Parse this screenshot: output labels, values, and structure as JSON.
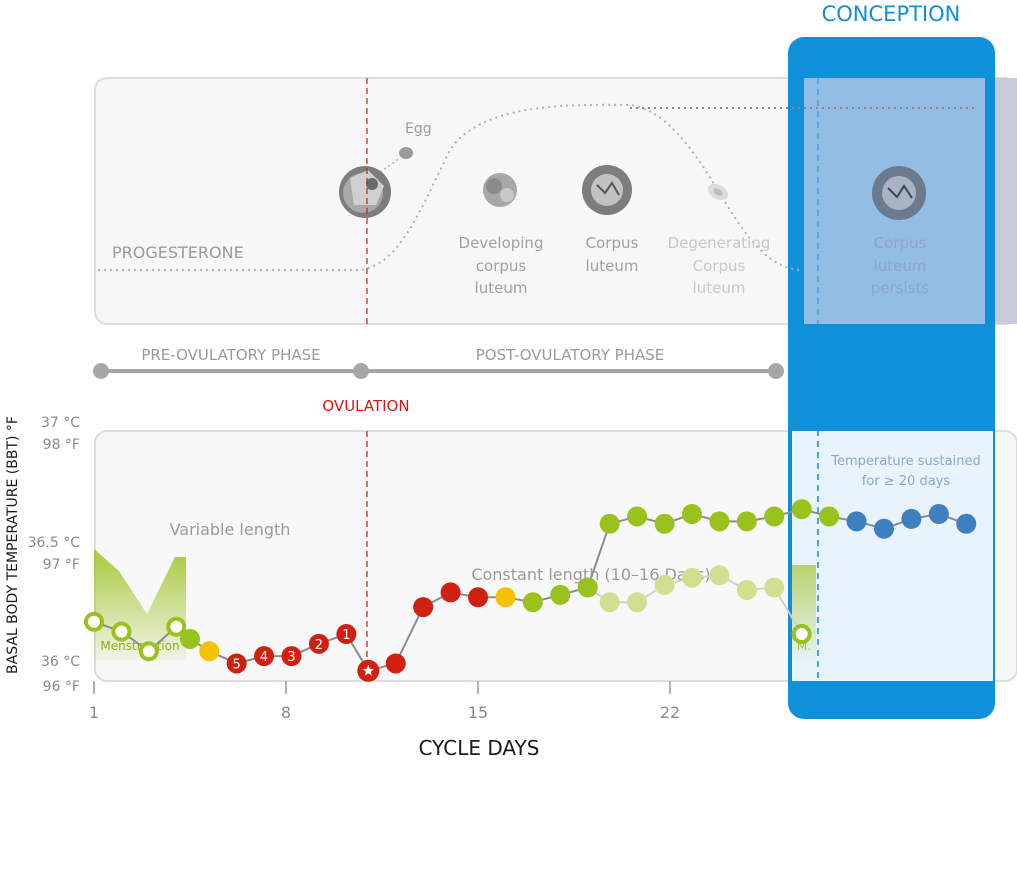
{
  "conception": {
    "title": "CONCEPTION",
    "label_corpus": "Corpus",
    "label_luteum": "luteum",
    "label_persists": "persists",
    "sustained_line1": "Temperature sustained",
    "sustained_line2": "for ≥ 20 days"
  },
  "hormone_panel": {
    "progesterone_label": "PROGESTERONE",
    "egg_label": "Egg",
    "developing_1": "Developing",
    "developing_2": "corpus",
    "developing_3": "luteum",
    "corpus_1": "Corpus",
    "corpus_2": "luteum",
    "degenerating_1": "Degenerating",
    "degenerating_2": "Corpus",
    "degenerating_3": "luteum"
  },
  "phases": {
    "pre": "PRE-OVULATORY PHASE",
    "post": "POST-OVULATORY PHASE",
    "ovulation": "OVULATION"
  },
  "annotations": {
    "variable_length": "Variable length",
    "constant_length": "Constant length (10–16 Days)",
    "menstruation": "Menstruation",
    "menstruation_short": "M."
  },
  "colors": {
    "conception_blue": "#1090d8",
    "ovulation_red": "#d01818",
    "lime": "#9ac21e",
    "pale_lime": "#cfe090",
    "yellow": "#f5c200",
    "red_point": "#cf2010",
    "blue_point": "#3d7fbf",
    "gray_text": "#a0a0a0"
  },
  "chart_data": {
    "type": "line",
    "title": "",
    "xlabel": "CYCLE DAYS",
    "ylabel": "BASAL BODY TEMPERATURE (BBT) °F",
    "x_ticks": [
      1,
      8,
      15,
      22
    ],
    "y_ticks_c": [
      "36 °C",
      "36.5 °C",
      "37 °C"
    ],
    "y_ticks_f": [
      "96 °F",
      "97 °F",
      "98 °F"
    ],
    "ovulation_day": 11,
    "series": [
      {
        "points": [
          {
            "x": 1,
            "y": 97.6,
            "style": "ring"
          },
          {
            "x": 2,
            "y": 97.2,
            "style": "ring"
          },
          {
            "x": 3,
            "y": 96.4,
            "style": "ring"
          },
          {
            "x": 4,
            "y": 97.4,
            "style": "ring"
          },
          {
            "x": 4.5,
            "y": 96.9,
            "style": "lime"
          },
          {
            "x": 5.2,
            "y": 96.4,
            "style": "yellow"
          },
          {
            "x": 6.2,
            "y": 95.9,
            "style": "red",
            "label": "5"
          },
          {
            "x": 7.2,
            "y": 96.2,
            "style": "red",
            "label": "4"
          },
          {
            "x": 8.2,
            "y": 96.2,
            "style": "red",
            "label": "3"
          },
          {
            "x": 9.2,
            "y": 96.7,
            "style": "red",
            "label": "2"
          },
          {
            "x": 10.2,
            "y": 97.1,
            "style": "red",
            "label": "1"
          },
          {
            "x": 11,
            "y": 95.6,
            "style": "star"
          },
          {
            "x": 12,
            "y": 95.9,
            "style": "red"
          },
          {
            "x": 13,
            "y": 98.2,
            "style": "red"
          },
          {
            "x": 14,
            "y": 98.8,
            "style": "red"
          },
          {
            "x": 15,
            "y": 98.6,
            "style": "red"
          },
          {
            "x": 16,
            "y": 98.6,
            "style": "yellow"
          },
          {
            "x": 17,
            "y": 98.4,
            "style": "lime"
          },
          {
            "x": 18,
            "y": 98.7,
            "style": "lime"
          },
          {
            "x": 19,
            "y": 99.0,
            "style": "lime"
          }
        ]
      },
      {
        "name": "conception",
        "points": [
          {
            "x": 19,
            "y": 99.0,
            "style": "lime"
          },
          {
            "x": 19.8,
            "y": 101.6,
            "style": "lime"
          },
          {
            "x": 20.8,
            "y": 101.9,
            "style": "lime"
          },
          {
            "x": 21.8,
            "y": 101.6,
            "style": "lime"
          },
          {
            "x": 22.8,
            "y": 102.0,
            "style": "lime"
          },
          {
            "x": 23.8,
            "y": 101.7,
            "style": "lime"
          },
          {
            "x": 24.8,
            "y": 101.7,
            "style": "lime"
          },
          {
            "x": 25.8,
            "y": 101.9,
            "style": "lime"
          },
          {
            "x": 26.8,
            "y": 102.2,
            "style": "lime"
          },
          {
            "x": 27.8,
            "y": 101.9,
            "style": "lime"
          },
          {
            "x": 28.8,
            "y": 101.7,
            "style": "blue"
          },
          {
            "x": 29.8,
            "y": 101.4,
            "style": "blue"
          },
          {
            "x": 30.8,
            "y": 101.8,
            "style": "blue"
          },
          {
            "x": 31.8,
            "y": 102.0,
            "style": "blue"
          },
          {
            "x": 32.8,
            "y": 101.6,
            "style": "blue"
          }
        ]
      },
      {
        "name": "no conception",
        "points": [
          {
            "x": 19,
            "y": 99.0,
            "style": "pale"
          },
          {
            "x": 19.8,
            "y": 98.4,
            "style": "pale"
          },
          {
            "x": 20.8,
            "y": 98.4,
            "style": "pale"
          },
          {
            "x": 21.8,
            "y": 99.1,
            "style": "pale"
          },
          {
            "x": 22.8,
            "y": 99.4,
            "style": "pale"
          },
          {
            "x": 23.8,
            "y": 99.5,
            "style": "pale"
          },
          {
            "x": 24.8,
            "y": 98.9,
            "style": "pale"
          },
          {
            "x": 25.8,
            "y": 99.0,
            "style": "pale"
          },
          {
            "x": 26.8,
            "y": 97.1,
            "style": "ring"
          }
        ]
      }
    ]
  }
}
